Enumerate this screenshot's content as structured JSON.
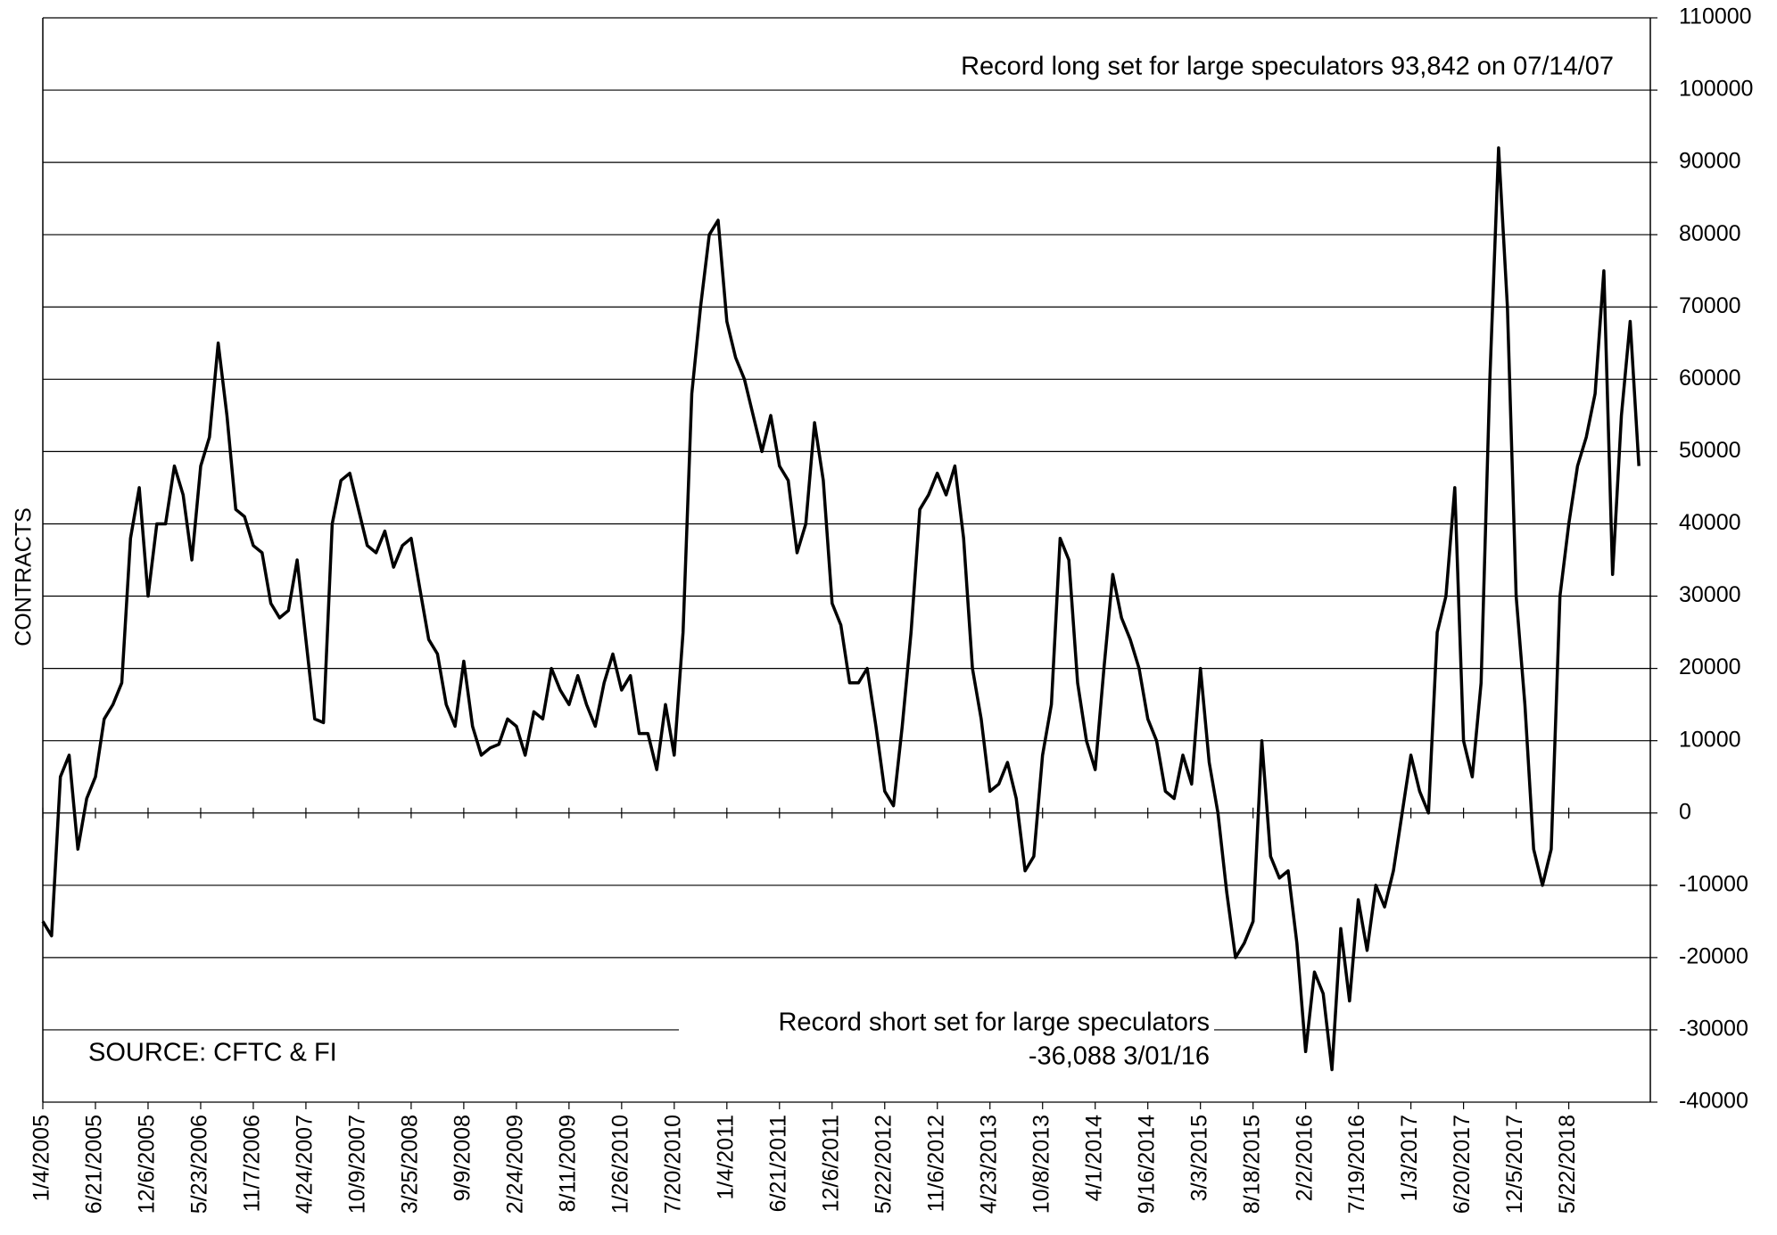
{
  "chart_data": {
    "type": "line",
    "y_label": "CONTRACTS",
    "annotations": [
      "Record long set for large speculators 93,842  on 07/14/07",
      "Record short set for large speculators",
      "-36,088 3/01/16",
      "SOURCE: CFTC & FI"
    ],
    "categories": [
      "1/4/2005",
      null,
      null,
      null,
      null,
      null,
      "6/21/2005",
      null,
      null,
      null,
      null,
      null,
      "12/6/2005",
      null,
      null,
      null,
      null,
      null,
      "5/23/2006",
      null,
      null,
      null,
      null,
      null,
      "11/7/2006",
      null,
      null,
      null,
      null,
      null,
      "4/24/2007",
      null,
      null,
      null,
      null,
      null,
      "10/9/2007",
      null,
      null,
      null,
      null,
      null,
      "3/25/2008",
      null,
      null,
      null,
      null,
      null,
      "9/9/2008",
      null,
      null,
      null,
      null,
      null,
      "2/24/2009",
      null,
      null,
      null,
      null,
      null,
      "8/11/2009",
      null,
      null,
      null,
      null,
      null,
      "1/26/2010",
      null,
      null,
      null,
      null,
      null,
      "7/20/2010",
      null,
      null,
      null,
      null,
      null,
      "1/4/2011",
      null,
      null,
      null,
      null,
      null,
      "6/21/2011",
      null,
      null,
      null,
      null,
      null,
      "12/6/2011",
      null,
      null,
      null,
      null,
      null,
      "5/22/2012",
      null,
      null,
      null,
      null,
      null,
      "11/6/2012",
      null,
      null,
      null,
      null,
      null,
      "4/23/2013",
      null,
      null,
      null,
      null,
      null,
      "10/8/2013",
      null,
      null,
      null,
      null,
      null,
      "4/1/2014",
      null,
      null,
      null,
      null,
      null,
      "9/16/2014",
      null,
      null,
      null,
      null,
      null,
      "3/3/2015",
      null,
      null,
      null,
      null,
      null,
      "8/18/2015",
      null,
      null,
      null,
      null,
      null,
      "2/2/2016",
      null,
      null,
      null,
      null,
      null,
      "7/19/2016",
      null,
      null,
      null,
      null,
      null,
      "1/3/2017",
      null,
      null,
      null,
      null,
      null,
      "6/20/2017",
      null,
      null,
      null,
      null,
      null,
      "12/5/2017",
      null,
      null,
      null,
      null,
      null,
      "5/22/2018",
      null,
      null,
      null,
      null,
      null,
      null,
      null,
      null
    ],
    "values": [
      -15000,
      -17000,
      5000,
      8000,
      -5000,
      2000,
      5000,
      13000,
      15000,
      18000,
      38000,
      45000,
      30000,
      40000,
      40000,
      48000,
      44000,
      35000,
      48000,
      52000,
      65000,
      55000,
      42000,
      41000,
      37000,
      36000,
      29000,
      27000,
      28000,
      35000,
      24000,
      13000,
      12500,
      40000,
      46000,
      47000,
      42000,
      37000,
      36000,
      39000,
      34000,
      37000,
      38000,
      31000,
      24000,
      22000,
      15000,
      12000,
      21000,
      12000,
      8000,
      9000,
      9500,
      13000,
      12000,
      8000,
      14000,
      13000,
      20000,
      17000,
      15000,
      19000,
      15000,
      12000,
      18000,
      22000,
      17000,
      19000,
      11000,
      11000,
      6000,
      15000,
      8000,
      25000,
      58000,
      70000,
      80000,
      82000,
      68000,
      63000,
      60000,
      55000,
      50000,
      55000,
      48000,
      46000,
      36000,
      40000,
      54000,
      46000,
      29000,
      26000,
      18000,
      18000,
      20000,
      12000,
      3000,
      1000,
      12000,
      25000,
      42000,
      44000,
      47000,
      44000,
      48000,
      38000,
      20000,
      13000,
      3000,
      4000,
      7000,
      2000,
      -8000,
      -6000,
      8000,
      15000,
      38000,
      35000,
      18000,
      10000,
      6000,
      20000,
      33000,
      27000,
      24000,
      20000,
      13000,
      10000,
      3000,
      2000,
      8000,
      4000,
      20000,
      7000,
      0,
      -11000,
      -20000,
      -18000,
      -15000,
      10000,
      -6000,
      -9000,
      -8000,
      -18000,
      -33000,
      -22000,
      -25000,
      -35500,
      -16000,
      -26000,
      -12000,
      -19000,
      -10000,
      -13000,
      -8000,
      0,
      8000,
      3000,
      0,
      25000,
      30000,
      45000,
      10000,
      5000,
      18000,
      60000,
      92000,
      70000,
      30000,
      15000,
      -5000,
      -10000,
      -5000,
      30000,
      40000,
      48000,
      52000,
      58000,
      75000,
      33000,
      55000,
      68000,
      48000
    ],
    "color": "#000000",
    "ylim": [
      -40000,
      110000
    ],
    "yticks": [
      -40000,
      -30000,
      -20000,
      -10000,
      0,
      10000,
      20000,
      30000,
      40000,
      50000,
      60000,
      70000,
      80000,
      90000,
      100000,
      110000
    ],
    "grid": true
  }
}
